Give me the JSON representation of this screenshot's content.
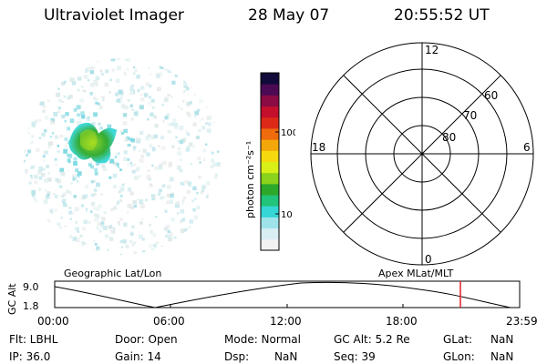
{
  "header": {
    "instrument": "Ultraviolet Imager",
    "date": "28 May 07",
    "time": "20:55:52 UT"
  },
  "colorbar": {
    "unit_label": "photon cm⁻²s⁻¹",
    "tick_100": "100",
    "tick_10": "10",
    "colors": [
      "#f2f2f2",
      "#d8eef3",
      "#9fe3ea",
      "#36d6d6",
      "#22c37a",
      "#2ca82a",
      "#8ad21b",
      "#d8ef18",
      "#f5d80d",
      "#f4a70a",
      "#ef6b0d",
      "#dd2a18",
      "#c40f2d",
      "#8b0b44",
      "#4c0a55",
      "#120a3a"
    ]
  },
  "polar": {
    "labels": {
      "top": "12",
      "bottom": "0",
      "left": "18",
      "right": "6"
    },
    "rings": [
      "60",
      "70",
      "80"
    ]
  },
  "alt_plot": {
    "geo_label": "Geographic Lat/Lon",
    "apex_label": "Apex MLat/MLT",
    "ylabel": "GC Alt",
    "ymax": "9.0",
    "ymin": "1.8",
    "xticks": [
      "00:00",
      "06:00",
      "12:00",
      "18:00",
      "23:59"
    ],
    "marker_color": "#e0202a"
  },
  "info": {
    "flt": "Flt: LBHL",
    "ip": "IP: 36.0",
    "door": "Door: Open",
    "gain": "Gain: 14",
    "mode": "Mode: Normal",
    "dsp": "Dsp:",
    "dsp_val": "NaN",
    "gcalt": "GC Alt: 5.2 Re",
    "seq": "Seq: 39",
    "glat": "GLat:",
    "glat_val": "NaN",
    "glon": "GLon:",
    "glon_val": "NaN"
  }
}
